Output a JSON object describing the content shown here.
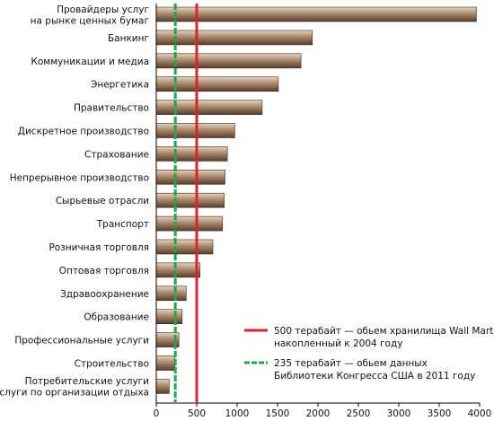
{
  "chart_data": {
    "type": "bar",
    "orientation": "horizontal",
    "categories": [
      "Провайдеры услуг на рынке ценных бумаг",
      "Банкинг",
      "Коммуникации и медиа",
      "Энергетика",
      "Правительство",
      "Дискретное производство",
      "Страхование",
      "Непрерывное производство",
      "Сырьевые отрасли",
      "Транспорт",
      "Розничная торговля",
      "Оптовая торговля",
      "Здравоохранение",
      "Образование",
      "Профессиональные услуги",
      "Строительство",
      "Потребительские услуги и услуги по организации отдыха"
    ],
    "category_lines": [
      [
        "Провайдеры услуг",
        "на рынке ценных бумаг"
      ],
      [
        "Банкинг"
      ],
      [
        "Коммуникации и медиа"
      ],
      [
        "Энергетика"
      ],
      [
        "Правительство"
      ],
      [
        "Дискретное производство"
      ],
      [
        "Страхование"
      ],
      [
        "Непрерывное производство"
      ],
      [
        "Сырьевые отрасли"
      ],
      [
        "Транспорт"
      ],
      [
        "Розничная торговля"
      ],
      [
        "Оптовая торговля"
      ],
      [
        "Здравоохранение"
      ],
      [
        "Образование"
      ],
      [
        "Профессиональные услуги"
      ],
      [
        "Строительство"
      ],
      [
        "Потребительские услуги",
        "и услуги по организации отдыха"
      ]
    ],
    "values": [
      3960,
      1930,
      1790,
      1510,
      1310,
      970,
      880,
      850,
      840,
      820,
      700,
      540,
      370,
      320,
      280,
      230,
      160
    ],
    "xlim": [
      0,
      4000
    ],
    "xticks": [
      "0",
      "500",
      "1000",
      "1500",
      "2000",
      "2500",
      "3000",
      "3500",
      "4000"
    ],
    "grid": false,
    "legend_position": "bottom-right",
    "reference_lines": [
      {
        "value": 500,
        "style": "solid",
        "color": "#e0202a",
        "label_lines": [
          "500 терабайт — обьем хранилища Wall Mart,",
          "накопленный к 2004 году"
        ]
      },
      {
        "value": 235,
        "style": "dashed",
        "color": "#1fa845",
        "label_lines": [
          "235 терабайт — обьем данных",
          "Библиотеки Конгресса США в 2011 году"
        ]
      }
    ],
    "colors": {
      "bar_dark": "#5a3e2b",
      "bar_mid": "#a98a6e",
      "bar_light": "#e6d3bd",
      "axis": "#000000"
    }
  }
}
